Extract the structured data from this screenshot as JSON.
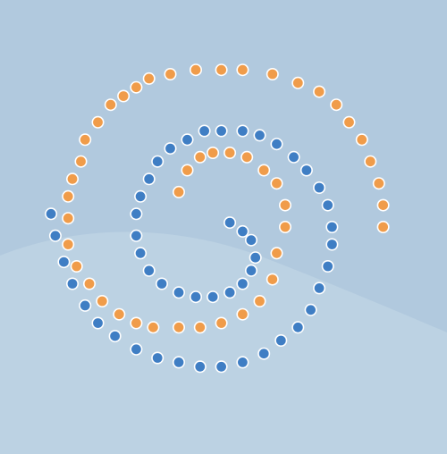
{
  "chart_data": {
    "type": "scatter",
    "title": "",
    "xlabel": "",
    "ylabel": "",
    "grid": false,
    "legend": "none",
    "xlim": [
      -5.2,
      5.3
    ],
    "ylim": [
      -5.2,
      5.2
    ],
    "background": {
      "upper_color": "#b1c9de",
      "lower_color": "#bcd2e3"
    },
    "series": [
      {
        "color": "#f09c4a",
        "points": [
          [
            -1.0,
            0.8
          ],
          [
            -0.8,
            1.3
          ],
          [
            -0.5,
            1.6
          ],
          [
            -0.2,
            1.7
          ],
          [
            0.2,
            1.7
          ],
          [
            0.6,
            1.6
          ],
          [
            1.0,
            1.3
          ],
          [
            1.3,
            1.0
          ],
          [
            1.5,
            0.5
          ],
          [
            1.5,
            0.0
          ],
          [
            1.3,
            -0.6
          ],
          [
            1.2,
            -1.2
          ],
          [
            0.9,
            -1.7
          ],
          [
            0.5,
            -2.0
          ],
          [
            0.0,
            -2.2
          ],
          [
            -0.5,
            -2.3
          ],
          [
            -1.0,
            -2.3
          ],
          [
            -1.6,
            -2.3
          ],
          [
            -2.0,
            -2.2
          ],
          [
            -2.4,
            -2.0
          ],
          [
            -2.8,
            -1.7
          ],
          [
            -3.1,
            -1.3
          ],
          [
            -3.4,
            -0.9
          ],
          [
            -3.6,
            -0.4
          ],
          [
            -3.6,
            0.2
          ],
          [
            -3.6,
            0.7
          ],
          [
            -3.5,
            1.1
          ],
          [
            -3.3,
            1.5
          ],
          [
            -3.2,
            2.0
          ],
          [
            -2.9,
            2.4
          ],
          [
            -2.6,
            2.8
          ],
          [
            -2.3,
            3.0
          ],
          [
            -2.0,
            3.2
          ],
          [
            -1.7,
            3.4
          ],
          [
            -1.2,
            3.5
          ],
          [
            -0.6,
            3.6
          ],
          [
            0.0,
            3.6
          ],
          [
            0.5,
            3.6
          ],
          [
            1.2,
            3.5
          ],
          [
            1.8,
            3.3
          ],
          [
            2.3,
            3.1
          ],
          [
            2.7,
            2.8
          ],
          [
            3.0,
            2.4
          ],
          [
            3.3,
            2.0
          ],
          [
            3.5,
            1.5
          ],
          [
            3.7,
            1.0
          ],
          [
            3.8,
            0.5
          ],
          [
            3.8,
            0.0
          ]
        ]
      },
      {
        "color": "#3f7ec4",
        "points": [
          [
            0.2,
            0.1
          ],
          [
            0.5,
            -0.1
          ],
          [
            0.7,
            -0.3
          ],
          [
            0.8,
            -0.7
          ],
          [
            0.7,
            -1.0
          ],
          [
            0.5,
            -1.3
          ],
          [
            0.2,
            -1.5
          ],
          [
            -0.2,
            -1.6
          ],
          [
            -0.6,
            -1.6
          ],
          [
            -1.0,
            -1.5
          ],
          [
            -1.4,
            -1.3
          ],
          [
            -1.7,
            -1.0
          ],
          [
            -1.9,
            -0.6
          ],
          [
            -2.0,
            -0.2
          ],
          [
            -2.0,
            0.3
          ],
          [
            -1.9,
            0.7
          ],
          [
            -1.7,
            1.1
          ],
          [
            -1.5,
            1.5
          ],
          [
            -1.2,
            1.8
          ],
          [
            -0.8,
            2.0
          ],
          [
            -0.4,
            2.2
          ],
          [
            0.0,
            2.2
          ],
          [
            0.5,
            2.2
          ],
          [
            0.9,
            2.1
          ],
          [
            1.3,
            1.9
          ],
          [
            1.7,
            1.6
          ],
          [
            2.0,
            1.3
          ],
          [
            2.3,
            0.9
          ],
          [
            2.5,
            0.5
          ],
          [
            2.6,
            0.0
          ],
          [
            2.6,
            -0.4
          ],
          [
            2.5,
            -0.9
          ],
          [
            2.3,
            -1.4
          ],
          [
            2.1,
            -1.9
          ],
          [
            1.8,
            -2.3
          ],
          [
            1.4,
            -2.6
          ],
          [
            1.0,
            -2.9
          ],
          [
            0.5,
            -3.1
          ],
          [
            0.0,
            -3.2
          ],
          [
            -0.5,
            -3.2
          ],
          [
            -1.0,
            -3.1
          ],
          [
            -1.5,
            -3.0
          ],
          [
            -2.0,
            -2.8
          ],
          [
            -2.5,
            -2.5
          ],
          [
            -2.9,
            -2.2
          ],
          [
            -3.2,
            -1.8
          ],
          [
            -3.5,
            -1.3
          ],
          [
            -3.7,
            -0.8
          ],
          [
            -3.9,
            -0.2
          ],
          [
            -4.0,
            0.3
          ]
        ]
      }
    ]
  }
}
